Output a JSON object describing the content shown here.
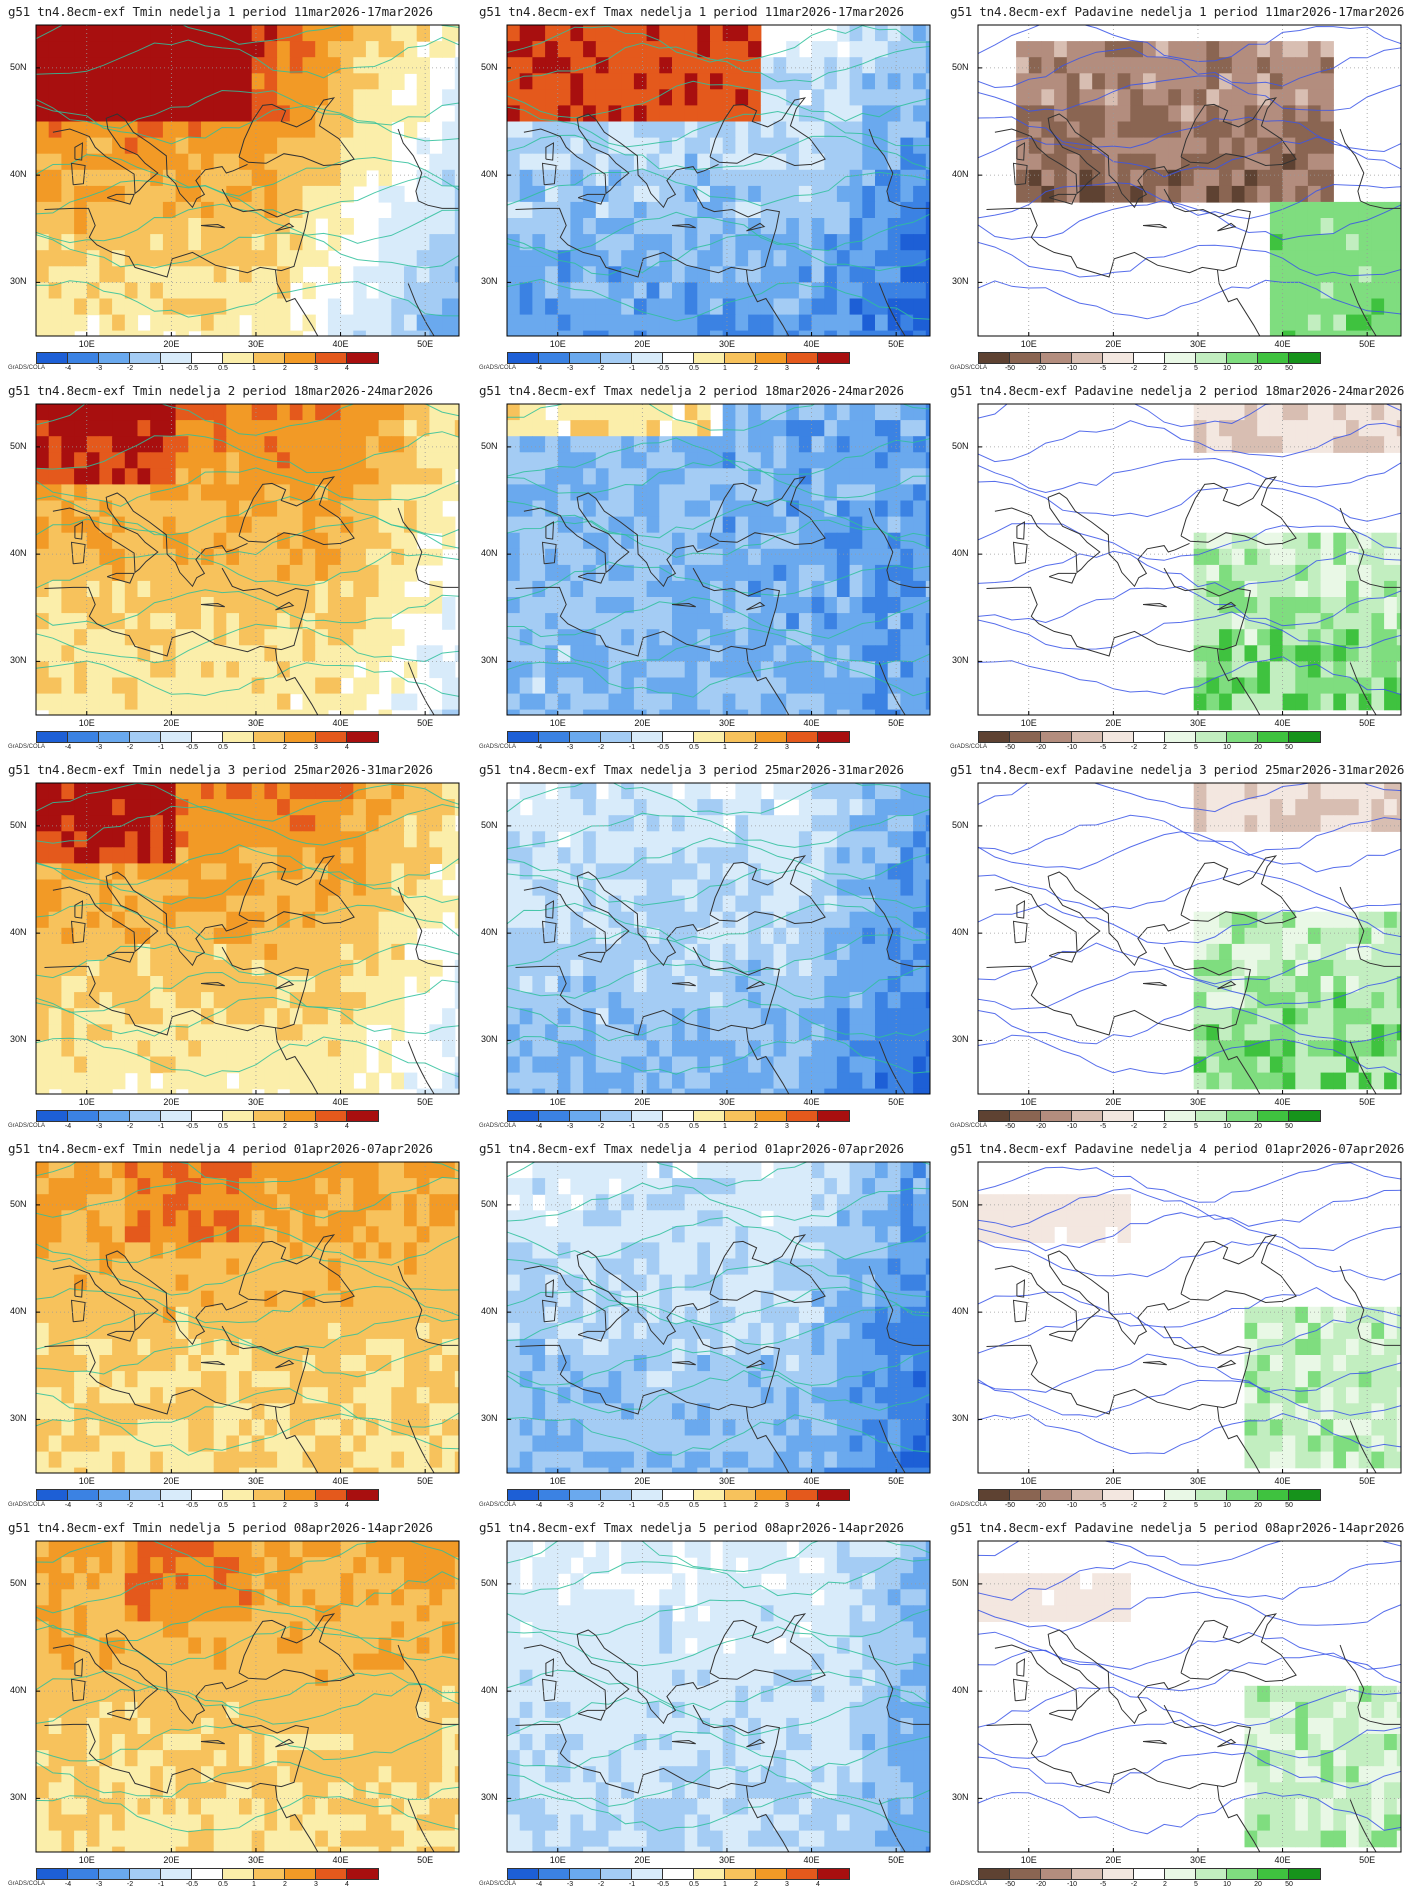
{
  "credit": "GrADS/COLA",
  "lat_labels": [
    "50N",
    "40N",
    "30N"
  ],
  "lon_labels": [
    "10E",
    "20E",
    "30E",
    "40E",
    "50E"
  ],
  "colorbars": {
    "temp": {
      "labels": [
        "-4",
        "-3",
        "-2",
        "-1",
        "-0.5",
        "0.5",
        "1",
        "2",
        "3",
        "4"
      ],
      "colors": [
        "#1d5fd6",
        "#3b82e3",
        "#6aa9ee",
        "#a4ccf4",
        "#d8ebfa",
        "#ffffff",
        "#fbeeaa",
        "#f7c25c",
        "#f29a26",
        "#e4591c",
        "#a80f0f"
      ]
    },
    "prec": {
      "labels": [
        "-50",
        "-20",
        "-10",
        "-5",
        "-2",
        "2",
        "5",
        "10",
        "20",
        "50"
      ],
      "colors": [
        "#5e4232",
        "#8a6552",
        "#b38d7e",
        "#d8beb2",
        "#f3e7e0",
        "#ffffff",
        "#e9f8e6",
        "#c2eec0",
        "#7fdd7f",
        "#3fc23f",
        "#16931b"
      ]
    }
  },
  "panels": [
    {
      "title": "g51 tn4.8ecm-exf Tmin nedelja 1 period 11mar2026-17mar2026",
      "variable": "Tmin",
      "week": 1,
      "theme": "warm_strong"
    },
    {
      "title": "g51 tn4.8ecm-exf Tmax nedelja 1 period 11mar2026-17mar2026",
      "variable": "Tmax",
      "week": 1,
      "theme": "tmax1"
    },
    {
      "title": "g51 tn4.8ecm-exf Padavine nedelja 1 period 11mar2026-17mar2026",
      "variable": "Padavine",
      "week": 1,
      "theme": "dry_strong"
    },
    {
      "title": "g51 tn4.8ecm-exf Tmin nedelja 2 period 18mar2026-24mar2026",
      "variable": "Tmin",
      "week": 2,
      "theme": "warm"
    },
    {
      "title": "g51 tn4.8ecm-exf Tmax nedelja 2 period 18mar2026-24mar2026",
      "variable": "Tmax",
      "week": 2,
      "theme": "cold_strong"
    },
    {
      "title": "g51 tn4.8ecm-exf Padavine nedelja 2 period 18mar2026-24mar2026",
      "variable": "Padavine",
      "week": 2,
      "theme": "wet"
    },
    {
      "title": "g51 tn4.8ecm-exf Tmin nedelja 3 period 25mar2026-31mar2026",
      "variable": "Tmin",
      "week": 3,
      "theme": "warm"
    },
    {
      "title": "g51 tn4.8ecm-exf Tmax nedelja 3 period 25mar2026-31mar2026",
      "variable": "Tmax",
      "week": 3,
      "theme": "cold"
    },
    {
      "title": "g51 tn4.8ecm-exf Padavine nedelja 3 period 25mar2026-31mar2026",
      "variable": "Padavine",
      "week": 3,
      "theme": "wet"
    },
    {
      "title": "g51 tn4.8ecm-exf Tmin nedelja 4 period 01apr2026-07apr2026",
      "variable": "Tmin",
      "week": 4,
      "theme": "warm_mild"
    },
    {
      "title": "g51 tn4.8ecm-exf Tmax nedelja 4 period 01apr2026-07apr2026",
      "variable": "Tmax",
      "week": 4,
      "theme": "cold"
    },
    {
      "title": "g51 tn4.8ecm-exf Padavine nedelja 4 period 01apr2026-07apr2026",
      "variable": "Padavine",
      "week": 4,
      "theme": "wet_mild"
    },
    {
      "title": "g51 tn4.8ecm-exf Tmin nedelja 5 period 08apr2026-14apr2026",
      "variable": "Tmin",
      "week": 5,
      "theme": "warm_mild"
    },
    {
      "title": "g51 tn4.8ecm-exf Tmax nedelja 5 period 08apr2026-14apr2026",
      "variable": "Tmax",
      "week": 5,
      "theme": "cold_mild"
    },
    {
      "title": "g51 tn4.8ecm-exf Padavine nedelja 5 period 08apr2026-14apr2026",
      "variable": "Padavine",
      "week": 5,
      "theme": "wet_mild"
    }
  ]
}
